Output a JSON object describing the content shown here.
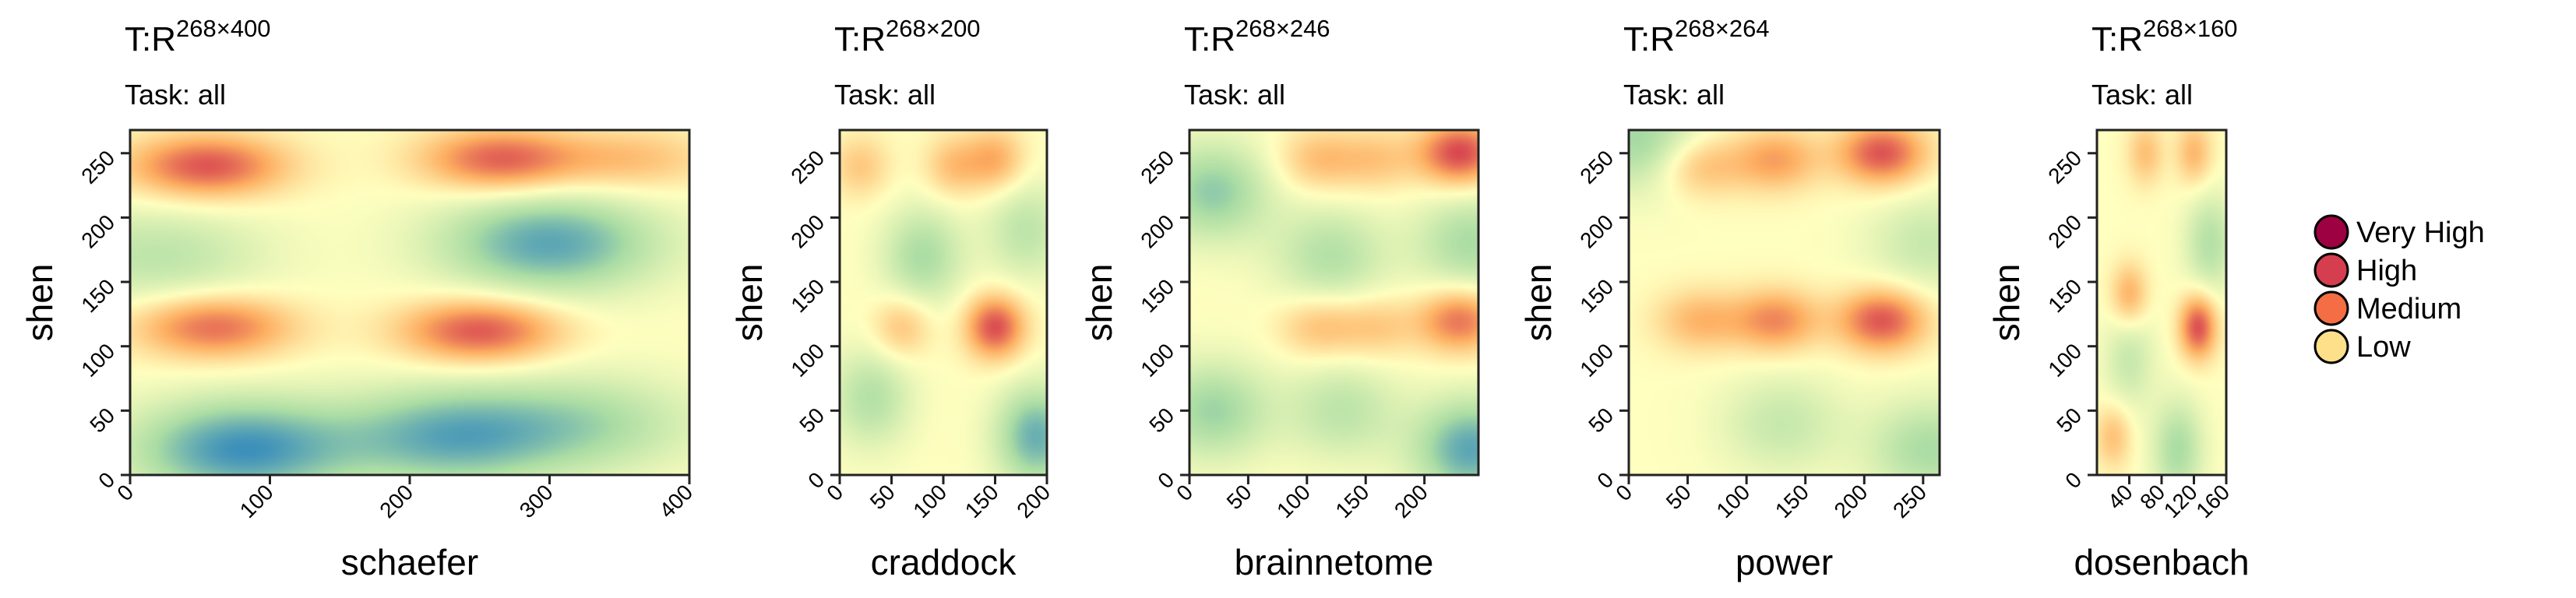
{
  "chart_data": [
    {
      "type": "heatmap",
      "title_prefix": "T:R",
      "title_superscript": "268×400",
      "subtitle": "Task: all",
      "xlabel": "schaefer",
      "ylabel": "shen",
      "xlim": [
        0,
        400
      ],
      "ylim": [
        0,
        268
      ],
      "xticks": [
        0,
        100,
        200,
        300,
        400
      ],
      "xtick_labels": [
        "0",
        "100",
        "200",
        "300",
        "400"
      ],
      "yticks": [
        0,
        50,
        100,
        150,
        200,
        250
      ],
      "ytick_labels": [
        "0",
        "50",
        "100",
        "150",
        "200",
        "250"
      ],
      "hotspots": [
        {
          "x": 55,
          "y": 240,
          "level": 0.82
        },
        {
          "x": 265,
          "y": 245,
          "level": 0.78
        },
        {
          "x": 60,
          "y": 115,
          "level": 0.72
        },
        {
          "x": 250,
          "y": 112,
          "level": 0.82
        },
        {
          "x": 360,
          "y": 245,
          "level": 0.35
        }
      ],
      "coldspots": [
        {
          "x": 80,
          "y": 20,
          "level": 0.85
        },
        {
          "x": 230,
          "y": 30,
          "level": 0.7
        },
        {
          "x": 300,
          "y": 180,
          "level": 0.75
        },
        {
          "x": 330,
          "y": 40,
          "level": 0.4
        },
        {
          "x": 20,
          "y": 170,
          "level": 0.35
        }
      ]
    },
    {
      "type": "heatmap",
      "title_prefix": "T:R",
      "title_superscript": "268×200",
      "subtitle": "Task: all",
      "xlabel": "craddock",
      "ylabel": "shen",
      "xlim": [
        0,
        200
      ],
      "ylim": [
        0,
        268
      ],
      "xticks": [
        0,
        50,
        100,
        150,
        200
      ],
      "xtick_labels": [
        "0",
        "50",
        "100",
        "150",
        "200"
      ],
      "yticks": [
        0,
        50,
        100,
        150,
        200,
        250
      ],
      "ytick_labels": [
        "0",
        "50",
        "100",
        "150",
        "200",
        "250"
      ],
      "hotspots": [
        {
          "x": 150,
          "y": 115,
          "level": 0.85
        },
        {
          "x": 150,
          "y": 245,
          "level": 0.45
        },
        {
          "x": 110,
          "y": 240,
          "level": 0.35
        },
        {
          "x": 60,
          "y": 115,
          "level": 0.35
        },
        {
          "x": 20,
          "y": 240,
          "level": 0.3
        }
      ],
      "coldspots": [
        {
          "x": 190,
          "y": 30,
          "level": 0.7
        },
        {
          "x": 80,
          "y": 170,
          "level": 0.45
        },
        {
          "x": 30,
          "y": 60,
          "level": 0.4
        },
        {
          "x": 180,
          "y": 190,
          "level": 0.35
        }
      ]
    },
    {
      "type": "heatmap",
      "title_prefix": "T:R",
      "title_superscript": "268×246",
      "subtitle": "Task: all",
      "xlabel": "brainnetome",
      "ylabel": "shen",
      "xlim": [
        0,
        246
      ],
      "ylim": [
        0,
        268
      ],
      "xticks": [
        0,
        50,
        100,
        150,
        200
      ],
      "xtick_labels": [
        "0",
        "50",
        "100",
        "150",
        "200"
      ],
      "yticks": [
        0,
        50,
        100,
        150,
        200,
        250
      ],
      "ytick_labels": [
        "0",
        "50",
        "100",
        "150",
        "200",
        "250"
      ],
      "hotspots": [
        {
          "x": 230,
          "y": 250,
          "level": 0.88
        },
        {
          "x": 230,
          "y": 120,
          "level": 0.7
        },
        {
          "x": 110,
          "y": 115,
          "level": 0.35
        },
        {
          "x": 110,
          "y": 245,
          "level": 0.35
        },
        {
          "x": 160,
          "y": 245,
          "level": 0.3
        },
        {
          "x": 160,
          "y": 115,
          "level": 0.3
        }
      ],
      "coldspots": [
        {
          "x": 240,
          "y": 20,
          "level": 0.75
        },
        {
          "x": 20,
          "y": 220,
          "level": 0.55
        },
        {
          "x": 20,
          "y": 50,
          "level": 0.5
        },
        {
          "x": 240,
          "y": 180,
          "level": 0.45
        },
        {
          "x": 120,
          "y": 170,
          "level": 0.4
        },
        {
          "x": 130,
          "y": 50,
          "level": 0.35
        }
      ]
    },
    {
      "type": "heatmap",
      "title_prefix": "T:R",
      "title_superscript": "268×264",
      "subtitle": "Task: all",
      "xlabel": "power",
      "ylabel": "shen",
      "xlim": [
        0,
        264
      ],
      "ylim": [
        0,
        268
      ],
      "xticks": [
        0,
        50,
        100,
        150,
        200,
        250
      ],
      "xtick_labels": [
        "0",
        "50",
        "100",
        "150",
        "200",
        "250"
      ],
      "yticks": [
        0,
        50,
        100,
        150,
        200,
        250
      ],
      "ytick_labels": [
        "0",
        "50",
        "100",
        "150",
        "200",
        "250"
      ],
      "hotspots": [
        {
          "x": 215,
          "y": 250,
          "level": 0.82
        },
        {
          "x": 215,
          "y": 120,
          "level": 0.82
        },
        {
          "x": 125,
          "y": 120,
          "level": 0.6
        },
        {
          "x": 125,
          "y": 245,
          "level": 0.5
        },
        {
          "x": 60,
          "y": 240,
          "level": 0.4
        },
        {
          "x": 60,
          "y": 120,
          "level": 0.4
        }
      ],
      "coldspots": [
        {
          "x": 10,
          "y": 260,
          "level": 0.5
        },
        {
          "x": 255,
          "y": 20,
          "level": 0.45
        },
        {
          "x": 130,
          "y": 40,
          "level": 0.3
        },
        {
          "x": 255,
          "y": 180,
          "level": 0.3
        }
      ]
    },
    {
      "type": "heatmap",
      "title_prefix": "T:R",
      "title_superscript": "268×160",
      "subtitle": "Task: all",
      "xlabel": "dosenbach",
      "ylabel": "shen",
      "xlim": [
        0,
        160
      ],
      "ylim": [
        0,
        268
      ],
      "xticks": [
        40,
        80,
        120,
        160
      ],
      "xtick_labels": [
        "40",
        "80",
        "120",
        "160"
      ],
      "yticks": [
        0,
        50,
        100,
        150,
        200,
        250
      ],
      "ytick_labels": [
        "0",
        "50",
        "100",
        "150",
        "200",
        "250"
      ],
      "hotspots": [
        {
          "x": 125,
          "y": 115,
          "level": 0.85
        },
        {
          "x": 40,
          "y": 140,
          "level": 0.45
        },
        {
          "x": 120,
          "y": 250,
          "level": 0.4
        },
        {
          "x": 60,
          "y": 250,
          "level": 0.35
        },
        {
          "x": 20,
          "y": 30,
          "level": 0.35
        }
      ],
      "coldspots": [
        {
          "x": 100,
          "y": 20,
          "level": 0.45
        },
        {
          "x": 140,
          "y": 180,
          "level": 0.4
        },
        {
          "x": 40,
          "y": 90,
          "level": 0.3
        }
      ]
    }
  ],
  "legend": {
    "placement": "right",
    "items": [
      {
        "label": "Very High",
        "color": "#9e0142"
      },
      {
        "label": "High",
        "color": "#d53e4f"
      },
      {
        "label": "Medium",
        "color": "#f46d43"
      },
      {
        "label": "Low",
        "color": "#fee08b"
      }
    ]
  },
  "colors": {
    "scale_low": "#3288bd",
    "scale_mid_low": "#abdda4",
    "scale_mid": "#ffffbf",
    "scale_mid_high": "#fdae61",
    "scale_high": "#d53e4f"
  }
}
